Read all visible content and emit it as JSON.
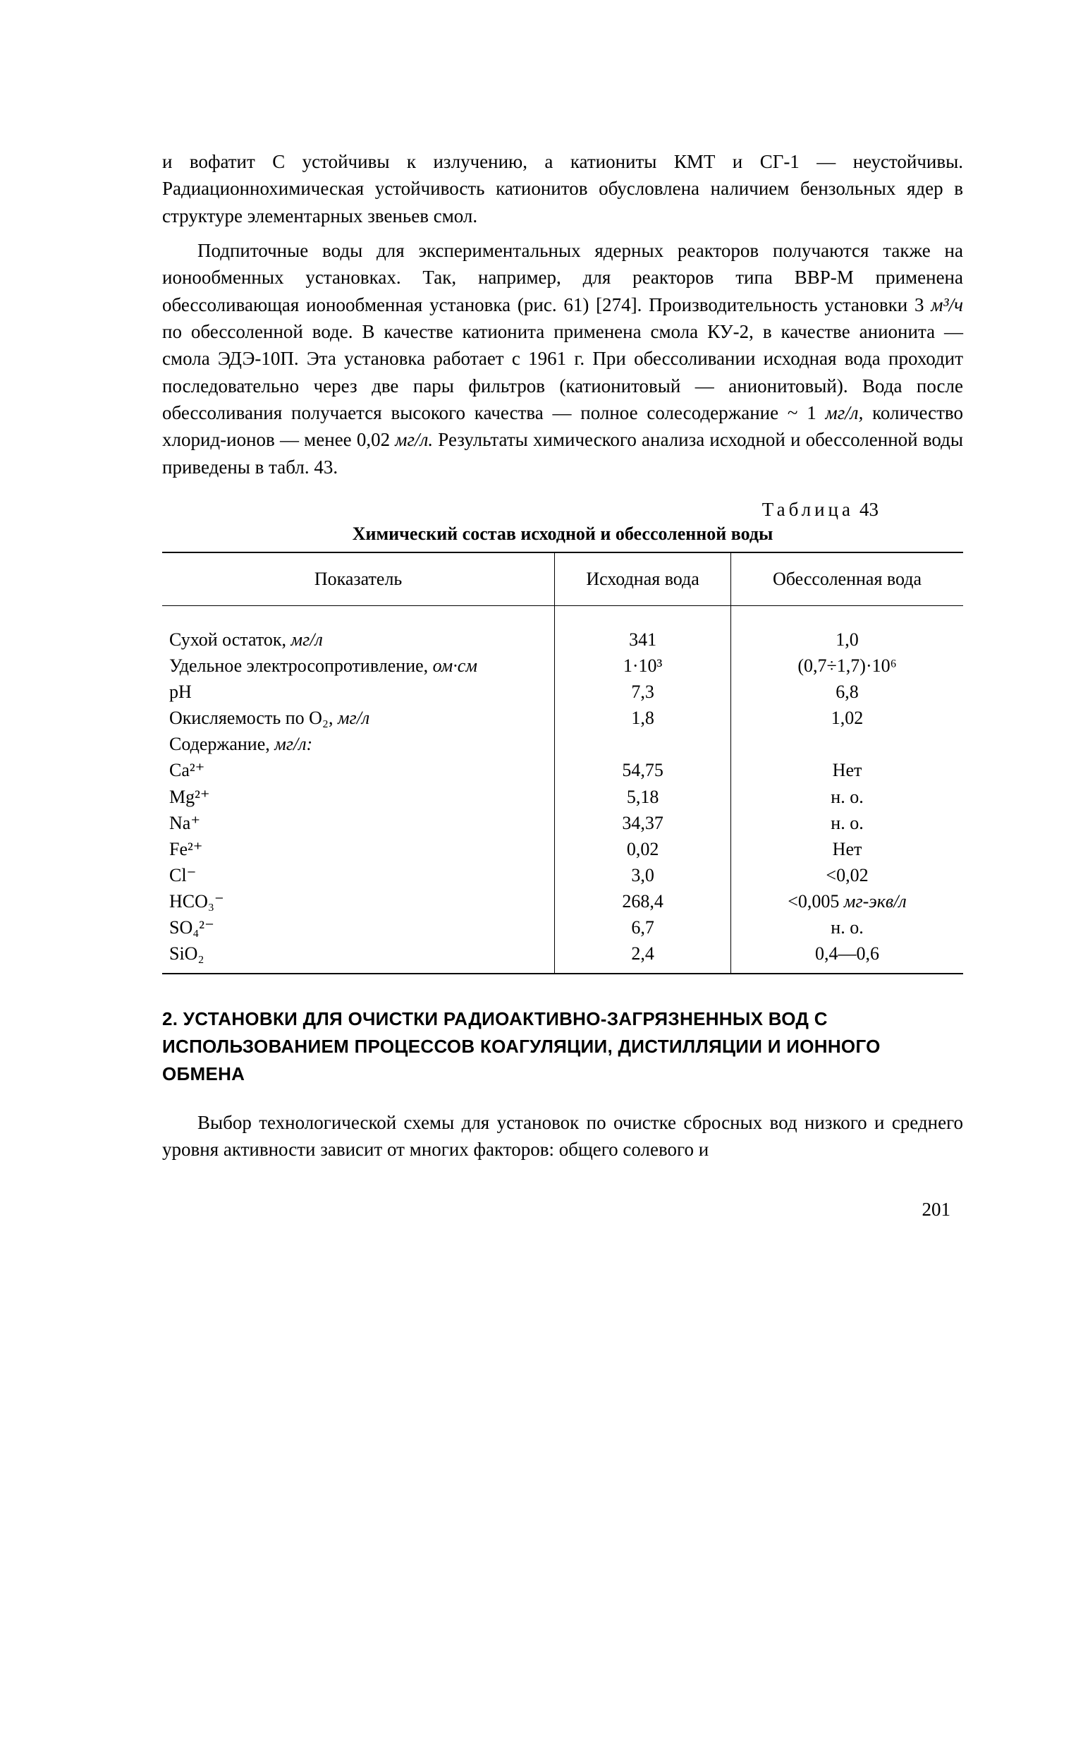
{
  "paragraphs": {
    "p1": "и вофатит С устойчивы к излучению, а катиониты КМТ и СГ-1 — неустойчивы. Радиационнохимическая устойчи­вость катионитов обусловлена наличием бензольных ядер в структуре элементарных звеньев смол.",
    "p2_a": "Подпиточные воды для экспериментальных ядерных реакторов получаются также на ионообменных уста­новках. Так, например, для реакторов типа ВВР-М при­менена обессоливающая ионообменная установка (рис. 61) [274]. Производительность установки 3 ",
    "p2_unit1": "м³/ч",
    "p2_b": " по обессоленной воде. В качестве катионита применена смола КУ-2, в качестве анионита — смола ЭДЭ-10П. Эта установка работает с 1961 г. При обессолива­нии исходная вода проходит последовательно че­рез две пары фильтров (катионитовый — анионито­вый). Вода после обессоливания получается высокого качества — полное солесодержание ~ 1 ",
    "p2_unit2": "мг/л,",
    "p2_c": " количе­ство хлорид-ионов — менее 0,02 ",
    "p2_unit3": "мг/л.",
    "p2_d": " Результаты хими­ческого анализа исходной и обессоленной воды приве­дены в табл. 43."
  },
  "table": {
    "label_word": "Таблица",
    "label_num": "43",
    "caption": "Химический состав исходной и обессоленной воды",
    "columns": [
      "Показатель",
      "Исходная вода",
      "Обессоленная вода"
    ],
    "rows": [
      {
        "c1": "Сухой остаток, ",
        "c1_ital": "мг/л",
        "c2": "341",
        "c3": "1,0"
      },
      {
        "c1": "Удельное электросопротивление, ",
        "c1_ital": "ом·см",
        "c2": "1·10³",
        "c3": "(0,7÷1,7)·10⁶"
      },
      {
        "c1": "pH",
        "c2": "7,3",
        "c3": "6,8"
      },
      {
        "c1": "Окисляемость по O₂, ",
        "c1_ital": "мг/л",
        "c2": "1,8",
        "c3": "1,02"
      },
      {
        "c1": "Содержание, ",
        "c1_ital": "мг/л:",
        "c2": "",
        "c3": ""
      },
      {
        "indent": true,
        "c1_html": "Ca²⁺",
        "c2": "54,75",
        "c3": "Нет"
      },
      {
        "indent": true,
        "c1_html": "Mg²⁺",
        "c2": "5,18",
        "c3": "н. о."
      },
      {
        "indent": true,
        "c1_html": "Na⁺",
        "c2": "34,37",
        "c3": "н. о."
      },
      {
        "indent": true,
        "c1_html": "Fe²⁺",
        "c2": "0,02",
        "c3": "Нет"
      },
      {
        "indent": true,
        "c1_html": "Cl⁻",
        "c2": "3,0",
        "c3": "<0,02"
      },
      {
        "indent": true,
        "c1_html": "HCO₃⁻",
        "c2": "268,4",
        "c3_pre": "<0,005 ",
        "c3_ital": "мг-экв/л"
      },
      {
        "indent": true,
        "c1_html": "SO₄²⁻",
        "c2": "6,7",
        "c3": "н. о."
      },
      {
        "indent": true,
        "c1_html": "SiO₂",
        "c2": "2,4",
        "c3": "0,4—0,6"
      }
    ]
  },
  "section_heading": "2. УСТАНОВКИ ДЛЯ ОЧИСТКИ РАДИОАКТИВНО-ЗАГРЯЗНЕННЫХ ВОД С ИСПОЛЬЗОВАНИЕМ ПРОЦЕССОВ КОАГУЛЯЦИИ, ДИСТИЛЛЯЦИИ И ИОННОГО ОБМЕНА",
  "paragraphs2": {
    "p3": "Выбор технологической схемы для установок по очистке сбросных вод низкого и среднего уровня актив­ности зависит от многих факторов: общего солевого и"
  },
  "page_number": "201"
}
